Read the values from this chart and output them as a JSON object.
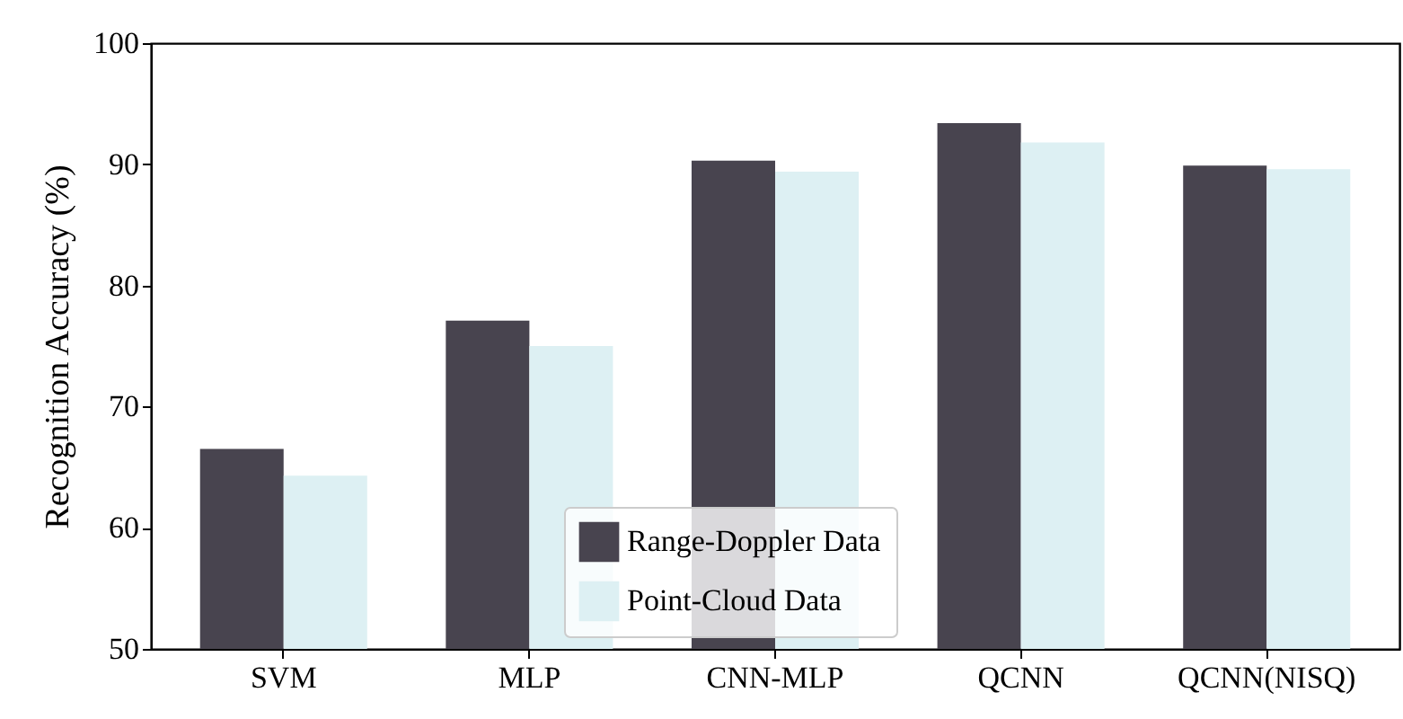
{
  "chart_data": {
    "type": "bar",
    "ylabel": "Recognition Accuracy (%)",
    "categories": [
      "SVM",
      "MLP",
      "CNN-MLP",
      "QCNN",
      "QCNN(NISQ)"
    ],
    "series": [
      {
        "name": "Range-Doppler Data",
        "color": "#48444f",
        "values": [
          66.5,
          77.1,
          90.3,
          93.4,
          89.9
        ]
      },
      {
        "name": "Point-Cloud Data",
        "color": "#ddf0f3",
        "values": [
          64.3,
          75.0,
          89.4,
          91.8,
          89.6
        ]
      }
    ],
    "ylim": [
      50,
      100
    ],
    "yticks": [
      50,
      60,
      70,
      80,
      90,
      100
    ],
    "grid": false,
    "legend": "bottom"
  }
}
